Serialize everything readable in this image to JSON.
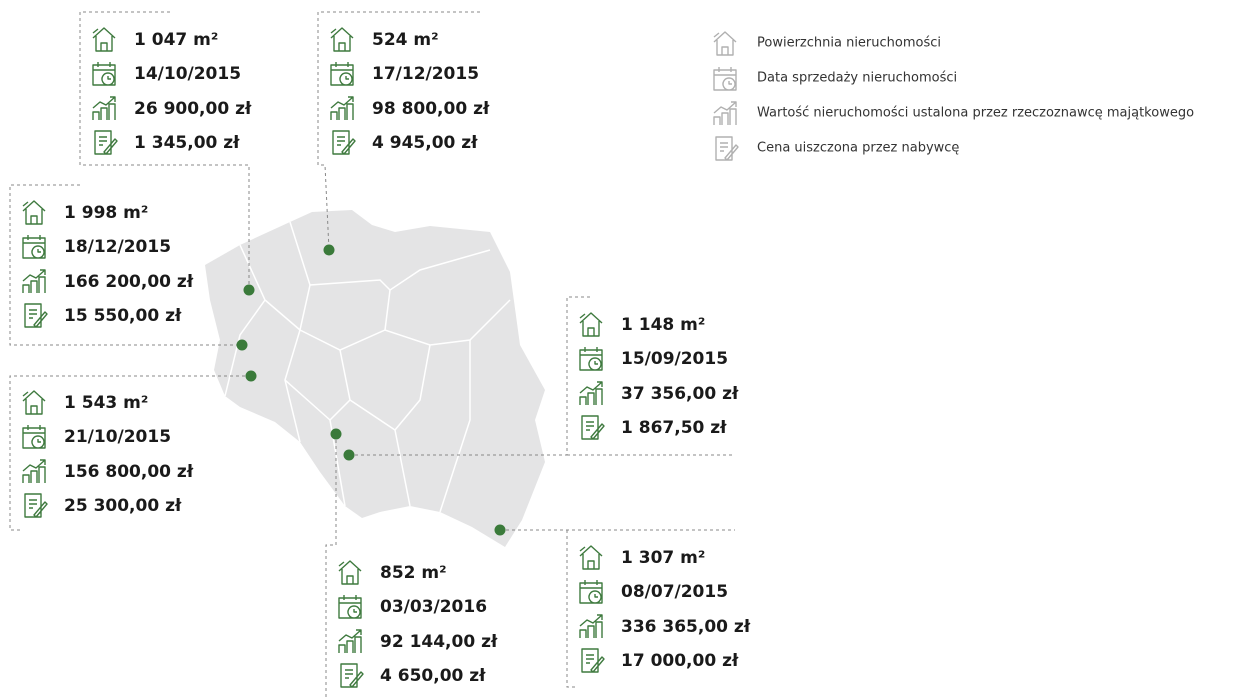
{
  "legend": [
    "Powierzchnia nieruchomości",
    "Data sprzedaży nieruchomości",
    "Wartość nieruchomości ustalona przez rzeczoznawcę majątkowego",
    "Cena uiszczona przez nabywcę"
  ],
  "properties": [
    {
      "area": "1 047 m²",
      "date": "14/10/2015",
      "value": "26 900,00 zł",
      "price": "1 345,00 zł"
    },
    {
      "area": "524 m²",
      "date": "17/12/2015",
      "value": "98 800,00 zł",
      "price": "4 945,00 zł"
    },
    {
      "area": "1 998 m²",
      "date": "18/12/2015",
      "value": "166 200,00 zł",
      "price": "15 550,00 zł"
    },
    {
      "area": "1 543 m²",
      "date": "21/10/2015",
      "value": "156 800,00 zł",
      "price": "25 300,00 zł"
    },
    {
      "area": "852 m²",
      "date": "03/03/2016",
      "value": "92 144,00 zł",
      "price": "4 650,00 zł"
    },
    {
      "area": "1 148 m²",
      "date": "15/09/2015",
      "value": "37 356,00 zł",
      "price": "1 867,50 zł"
    },
    {
      "area": "1 307 m²",
      "date": "08/07/2015",
      "value": "336 365,00 zł",
      "price": "17 000,00 zł"
    }
  ]
}
